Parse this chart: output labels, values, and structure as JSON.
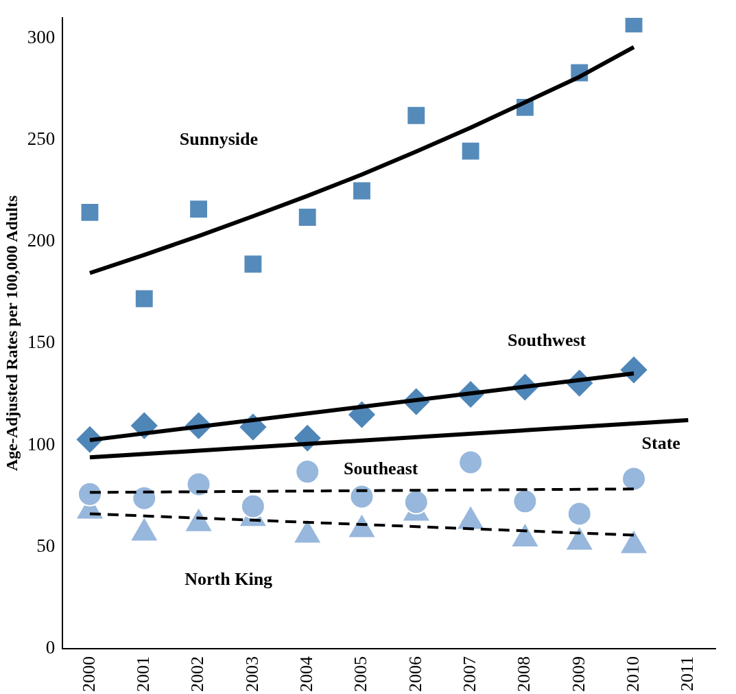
{
  "chart_data": {
    "type": "scatter",
    "ylabel": "Age-Adjusted Rates per 100,000 Adults",
    "categories": [
      "2000",
      "2001",
      "2002",
      "2003",
      "2004",
      "2005",
      "2006",
      "2007",
      "2008",
      "2009",
      "2010",
      "2011"
    ],
    "ylim": [
      0,
      310
    ],
    "yticks": [
      0,
      50,
      100,
      150,
      200,
      250,
      300
    ],
    "grid": false,
    "legend": false,
    "series": [
      {
        "type": "scatter",
        "name": "Sunnyside",
        "color": "#558bbb",
        "marker": "square",
        "values": [
          214.4,
          172,
          216,
          189,
          212,
          225,
          262,
          244.5,
          266,
          283,
          307,
          null
        ]
      },
      {
        "type": "scatter",
        "name": "Southwest",
        "color": "#4f86b8",
        "marker": "diamond",
        "values": [
          102.8,
          109.6,
          109.6,
          108.9,
          103.5,
          115,
          121.4,
          125,
          128.5,
          130.5,
          137,
          null
        ]
      },
      {
        "type": "scatter",
        "name": "Southeast",
        "color": "#97b7dc",
        "marker": "circle",
        "values": [
          76,
          74,
          80.8,
          70,
          87,
          74.7,
          72,
          91.6,
          72.4,
          66.3,
          83.5,
          null
        ]
      },
      {
        "type": "scatter",
        "name": "North King",
        "color": "#97b7dc",
        "marker": "triangle",
        "values": [
          67.6,
          56.8,
          61.5,
          64,
          55.8,
          58.5,
          66.6,
          62.6,
          54,
          52.4,
          50.7,
          null
        ]
      },
      {
        "type": "line",
        "color": "#000000",
        "marker": "none",
        "line_style": "solid",
        "values": [
          184.6,
          193.5,
          202.8,
          212.5,
          222.5,
          233,
          244.3,
          256,
          268.5,
          281,
          295.6,
          null
        ]
      },
      {
        "type": "line",
        "color": "#000000",
        "marker": "none",
        "line_style": "solid",
        "values": [
          102.5,
          null,
          null,
          null,
          null,
          null,
          null,
          null,
          null,
          null,
          135.3,
          null
        ]
      },
      {
        "type": "line",
        "name": "State",
        "color": "#000000",
        "marker": "none",
        "line_style": "solid",
        "values": [
          94,
          null,
          null,
          null,
          null,
          null,
          null,
          null,
          null,
          null,
          null,
          112.3
        ]
      },
      {
        "type": "line",
        "color": "#000000",
        "marker": "none",
        "line_style": "dashed",
        "values": [
          76.8,
          null,
          null,
          null,
          null,
          null,
          null,
          null,
          null,
          null,
          78.5,
          null
        ]
      },
      {
        "type": "line",
        "color": "#000000",
        "marker": "none",
        "line_style": "dashed",
        "values": [
          66.3,
          null,
          null,
          null,
          null,
          null,
          null,
          null,
          null,
          null,
          55.8,
          null
        ]
      }
    ]
  }
}
